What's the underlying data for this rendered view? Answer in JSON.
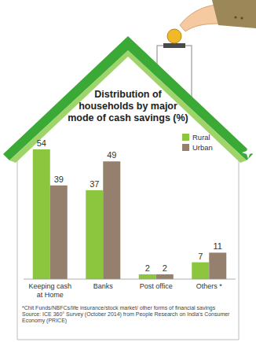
{
  "chart_data": {
    "type": "bar",
    "title": "Distribution of households by major mode of cash savings (%)",
    "categories": [
      "Keeping cash at Home",
      "Banks",
      "Post office",
      "Others *"
    ],
    "series": [
      {
        "name": "Rural",
        "color": "#8cc63f",
        "values": [
          54,
          37,
          2,
          7
        ]
      },
      {
        "name": "Urban",
        "color": "#94806d",
        "values": [
          39,
          49,
          2,
          11
        ]
      }
    ],
    "ylim": [
      0,
      54
    ],
    "tick_labels": false,
    "grid": false,
    "data_labels": true,
    "legend": "top-right",
    "annotations": [
      "*Chit Funds/NBFCs/life insurance/stock market/ other forms of financial savings",
      "Source: ICE 360° Survey (October 2014) from People Research on India's Consumer Economy (PRICE)"
    ]
  }
}
